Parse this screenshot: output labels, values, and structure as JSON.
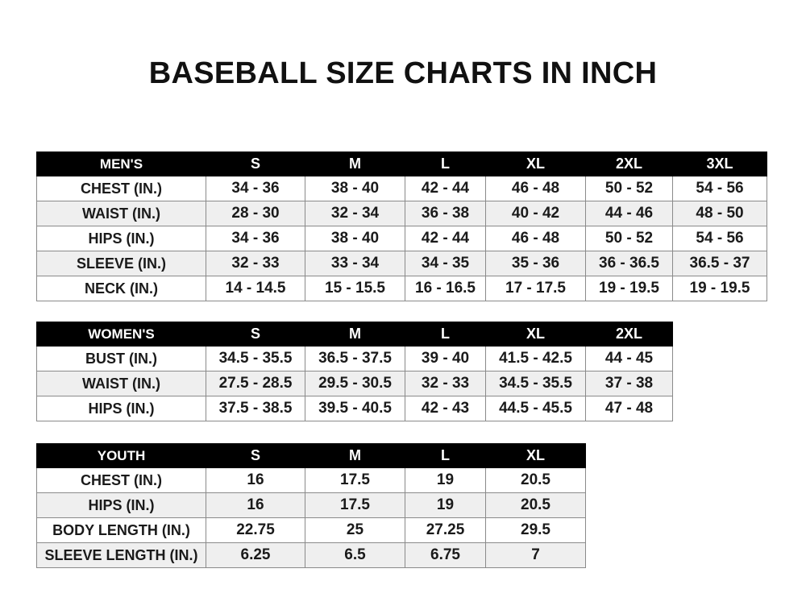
{
  "title": "BASEBALL SIZE CHARTS IN INCH",
  "men": {
    "header": "MEN'S",
    "sizes": [
      "S",
      "M",
      "L",
      "XL",
      "2XL",
      "3XL"
    ],
    "rows": [
      {
        "label": "CHEST (IN.)",
        "values": [
          "34 - 36",
          "38 - 40",
          "42 - 44",
          "46 - 48",
          "50 - 52",
          "54 - 56"
        ]
      },
      {
        "label": "WAIST (IN.)",
        "values": [
          "28 - 30",
          "32 - 34",
          "36 - 38",
          "40 - 42",
          "44 - 46",
          "48 - 50"
        ]
      },
      {
        "label": "HIPS (IN.)",
        "values": [
          "34 - 36",
          "38 - 40",
          "42 - 44",
          "46 - 48",
          "50 - 52",
          "54 - 56"
        ]
      },
      {
        "label": "SLEEVE (IN.)",
        "values": [
          "32 - 33",
          "33 - 34",
          "34 - 35",
          "35 - 36",
          "36 - 36.5",
          "36.5 - 37"
        ]
      },
      {
        "label": "NECK (IN.)",
        "values": [
          "14 - 14.5",
          "15 - 15.5",
          "16 - 16.5",
          "17 - 17.5",
          "19 - 19.5",
          "19 - 19.5"
        ]
      }
    ]
  },
  "women": {
    "header": "WOMEN'S",
    "sizes": [
      "S",
      "M",
      "L",
      "XL",
      "2XL"
    ],
    "rows": [
      {
        "label": "BUST (IN.)",
        "values": [
          "34.5 - 35.5",
          "36.5 - 37.5",
          "39 - 40",
          "41.5 - 42.5",
          "44 - 45"
        ]
      },
      {
        "label": "WAIST (IN.)",
        "values": [
          "27.5 - 28.5",
          "29.5 - 30.5",
          "32 - 33",
          "34.5 - 35.5",
          "37 - 38"
        ]
      },
      {
        "label": "HIPS (IN.)",
        "values": [
          "37.5 - 38.5",
          "39.5 - 40.5",
          "42 - 43",
          "44.5 - 45.5",
          "47 - 48"
        ]
      }
    ]
  },
  "youth": {
    "header": "YOUTH",
    "sizes": [
      "S",
      "M",
      "L",
      "XL"
    ],
    "rows": [
      {
        "label": "CHEST (IN.)",
        "values": [
          "16",
          "17.5",
          "19",
          "20.5"
        ]
      },
      {
        "label": "HIPS (IN.)",
        "values": [
          "16",
          "17.5",
          "19",
          "20.5"
        ]
      },
      {
        "label": "BODY LENGTH (IN.)",
        "values": [
          "22.75",
          "25",
          "27.25",
          "29.5"
        ]
      },
      {
        "label": "SLEEVE LENGTH (IN.)",
        "values": [
          "6.25",
          "6.5",
          "6.75",
          "7"
        ]
      }
    ]
  }
}
